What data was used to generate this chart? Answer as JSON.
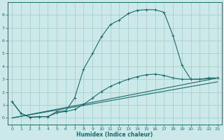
{
  "xlabel": "Humidex (Indice chaleur)",
  "xlim": [
    -0.5,
    23.5
  ],
  "ylim": [
    -0.5,
    9.0
  ],
  "yticks": [
    0,
    1,
    2,
    3,
    4,
    5,
    6,
    7,
    8
  ],
  "xticks": [
    0,
    1,
    2,
    3,
    4,
    5,
    6,
    7,
    8,
    9,
    10,
    11,
    12,
    13,
    14,
    15,
    16,
    17,
    18,
    19,
    20,
    21,
    22,
    23
  ],
  "bg_color": "#cce8e8",
  "grid_color": "#a0cccc",
  "line_color": "#1a6b6b",
  "curve1_x": [
    0,
    1,
    2,
    3,
    4,
    5,
    6,
    7,
    8,
    9,
    10,
    11,
    12,
    13,
    14,
    15,
    16,
    17,
    18,
    19,
    20,
    21,
    22,
    23
  ],
  "curve1_y": [
    1.25,
    0.35,
    0.05,
    0.1,
    0.1,
    0.5,
    0.55,
    1.55,
    3.8,
    5.0,
    6.3,
    7.25,
    7.6,
    8.1,
    8.35,
    8.4,
    8.4,
    8.2,
    6.4,
    4.1,
    3.0,
    3.0,
    3.1,
    3.1
  ],
  "curve2_x": [
    0,
    1,
    2,
    3,
    4,
    5,
    6,
    7,
    8,
    9,
    10,
    11,
    12,
    13,
    14,
    15,
    16,
    17,
    18,
    19,
    20,
    21,
    22,
    23
  ],
  "curve2_y": [
    1.25,
    0.35,
    0.05,
    0.1,
    0.1,
    0.4,
    0.5,
    0.65,
    1.05,
    1.55,
    2.05,
    2.45,
    2.75,
    3.0,
    3.2,
    3.35,
    3.4,
    3.3,
    3.1,
    3.0,
    3.0,
    3.0,
    3.05,
    3.1
  ],
  "line1_x": [
    0,
    23
  ],
  "line1_y": [
    0.0,
    3.1
  ],
  "line2_x": [
    0,
    23
  ],
  "line2_y": [
    0.0,
    2.8
  ]
}
